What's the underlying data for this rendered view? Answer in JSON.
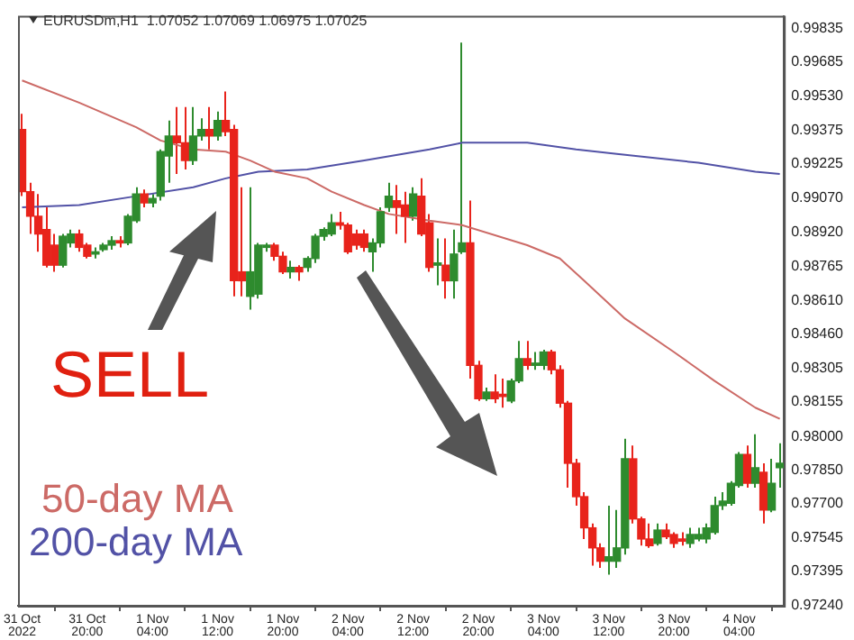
{
  "chart_data": {
    "type": "candlestick",
    "title": "EURUSDm,H1  1.07052 1.07069 1.06975 1.07025",
    "x": [
      "2022-10-31T12:00",
      "2022-10-31T13:00",
      "2022-10-31T14:00",
      "2022-10-31T15:00",
      "2022-10-31T16:00",
      "2022-10-31T17:00",
      "2022-10-31T18:00",
      "2022-10-31T19:00",
      "2022-10-31T20:00",
      "2022-10-31T21:00",
      "2022-10-31T22:00",
      "2022-10-31T23:00",
      "2022-11-01T00:00",
      "2022-11-01T01:00",
      "2022-11-01T02:00",
      "2022-11-01T03:00",
      "2022-11-01T04:00",
      "2022-11-01T05:00",
      "2022-11-01T06:00",
      "2022-11-01T07:00",
      "2022-11-01T08:00",
      "2022-11-01T09:00",
      "2022-11-01T10:00",
      "2022-11-01T11:00",
      "2022-11-01T12:00",
      "2022-11-01T13:00",
      "2022-11-01T14:00",
      "2022-11-01T15:00",
      "2022-11-01T16:00",
      "2022-11-01T17:00",
      "2022-11-01T18:00",
      "2022-11-01T19:00",
      "2022-11-01T20:00",
      "2022-11-01T21:00",
      "2022-11-01T22:00",
      "2022-11-01T23:00",
      "2022-11-02T00:00",
      "2022-11-02T01:00",
      "2022-11-02T02:00",
      "2022-11-02T03:00",
      "2022-11-02T04:00",
      "2022-11-02T05:00",
      "2022-11-02T06:00",
      "2022-11-02T07:00",
      "2022-11-02T08:00",
      "2022-11-02T09:00",
      "2022-11-02T10:00",
      "2022-11-02T11:00",
      "2022-11-02T12:00",
      "2022-11-02T13:00",
      "2022-11-02T14:00",
      "2022-11-02T15:00",
      "2022-11-02T16:00",
      "2022-11-02T17:00",
      "2022-11-02T18:00",
      "2022-11-02T19:00",
      "2022-11-02T20:00",
      "2022-11-02T21:00",
      "2022-11-02T22:00",
      "2022-11-02T23:00",
      "2022-11-03T00:00",
      "2022-11-03T01:00",
      "2022-11-03T02:00",
      "2022-11-03T03:00",
      "2022-11-03T04:00",
      "2022-11-03T05:00",
      "2022-11-03T06:00",
      "2022-11-03T07:00",
      "2022-11-03T08:00",
      "2022-11-03T09:00",
      "2022-11-03T10:00",
      "2022-11-03T11:00",
      "2022-11-03T12:00",
      "2022-11-03T13:00",
      "2022-11-03T14:00",
      "2022-11-03T15:00",
      "2022-11-03T16:00",
      "2022-11-03T17:00",
      "2022-11-03T18:00",
      "2022-11-03T19:00",
      "2022-11-03T20:00",
      "2022-11-03T21:00",
      "2022-11-03T22:00",
      "2022-11-03T23:00",
      "2022-11-04T00:00",
      "2022-11-04T01:00",
      "2022-11-04T02:00",
      "2022-11-04T03:00",
      "2022-11-04T04:00",
      "2022-11-04T05:00",
      "2022-11-04T06:00",
      "2022-11-04T07:00",
      "2022-11-04T08:00",
      "2022-11-04T09:00"
    ],
    "ohlc": [
      [
        0.9938,
        0.9945,
        0.9908,
        0.991
      ],
      [
        0.991,
        0.9914,
        0.9891,
        0.9899
      ],
      [
        0.9899,
        0.9909,
        0.9883,
        0.9891
      ],
      [
        0.9893,
        0.9903,
        0.9876,
        0.9877
      ],
      [
        0.9886,
        0.9891,
        0.9874,
        0.9877
      ],
      [
        0.9877,
        0.9891,
        0.9876,
        0.989
      ],
      [
        0.9887,
        0.9893,
        0.9885,
        0.9891
      ],
      [
        0.9891,
        0.9893,
        0.9883,
        0.9885
      ],
      [
        0.9886,
        0.9887,
        0.988,
        0.9881
      ],
      [
        0.9882,
        0.9885,
        0.988,
        0.9883
      ],
      [
        0.9884,
        0.9887,
        0.9883,
        0.9886
      ],
      [
        0.9886,
        0.989,
        0.9884,
        0.9888
      ],
      [
        0.9888,
        0.989,
        0.9885,
        0.9887
      ],
      [
        0.9887,
        0.99,
        0.9886,
        0.9899
      ],
      [
        0.9897,
        0.9912,
        0.9896,
        0.9909
      ],
      [
        0.9909,
        0.9911,
        0.9903,
        0.9905
      ],
      [
        0.9905,
        0.9909,
        0.9903,
        0.9907
      ],
      [
        0.9908,
        0.9929,
        0.9906,
        0.9928
      ],
      [
        0.9926,
        0.9942,
        0.9914,
        0.9935
      ],
      [
        0.9935,
        0.9948,
        0.9918,
        0.9932
      ],
      [
        0.9932,
        0.9948,
        0.992,
        0.9924
      ],
      [
        0.9924,
        0.9948,
        0.9922,
        0.9935
      ],
      [
        0.9935,
        0.9943,
        0.9933,
        0.9938
      ],
      [
        0.9938,
        0.9948,
        0.9929,
        0.9935
      ],
      [
        0.9935,
        0.9946,
        0.9933,
        0.9942
      ],
      [
        0.9942,
        0.9955,
        0.9935,
        0.9937
      ],
      [
        0.9938,
        0.994,
        0.9863,
        0.987
      ],
      [
        0.9874,
        0.9912,
        0.9863,
        0.987
      ],
      [
        0.9863,
        0.9912,
        0.9857,
        0.9874
      ],
      [
        0.9864,
        0.9887,
        0.9862,
        0.9886
      ],
      [
        0.9885,
        0.9887,
        0.9883,
        0.9886
      ],
      [
        0.9886,
        0.9887,
        0.9879,
        0.9881
      ],
      [
        0.9881,
        0.9883,
        0.9873,
        0.9874
      ],
      [
        0.9874,
        0.9879,
        0.9871,
        0.9876
      ],
      [
        0.9876,
        0.9877,
        0.987,
        0.9874
      ],
      [
        0.9876,
        0.9881,
        0.9874,
        0.988
      ],
      [
        0.988,
        0.9891,
        0.9878,
        0.989
      ],
      [
        0.989,
        0.9894,
        0.9888,
        0.9893
      ],
      [
        0.9891,
        0.99,
        0.989,
        0.9896
      ],
      [
        0.9896,
        0.9901,
        0.9893,
        0.9895
      ],
      [
        0.9895,
        0.9896,
        0.9882,
        0.9883
      ],
      [
        0.9891,
        0.9893,
        0.9884,
        0.9886
      ],
      [
        0.9891,
        0.9893,
        0.9883,
        0.9885
      ],
      [
        0.9883,
        0.9889,
        0.9874,
        0.9887
      ],
      [
        0.9887,
        0.9903,
        0.9885,
        0.9901
      ],
      [
        0.9903,
        0.9914,
        0.9901,
        0.9908
      ],
      [
        0.9906,
        0.9913,
        0.9891,
        0.9903
      ],
      [
        0.9904,
        0.991,
        0.9887,
        0.9899
      ],
      [
        0.9899,
        0.9912,
        0.9897,
        0.9909
      ],
      [
        0.9908,
        0.9916,
        0.989,
        0.9891
      ],
      [
        0.9896,
        0.99,
        0.9874,
        0.9876
      ],
      [
        0.9877,
        0.9889,
        0.9868,
        0.9878
      ],
      [
        0.9877,
        0.9889,
        0.9862,
        0.987
      ],
      [
        0.987,
        0.9893,
        0.9862,
        0.9882
      ],
      [
        0.9883,
        0.9977,
        0.9882,
        0.9887
      ],
      [
        0.9887,
        0.9906,
        0.9826,
        0.9832
      ],
      [
        0.9832,
        0.9834,
        0.9816,
        0.9817
      ],
      [
        0.9817,
        0.9822,
        0.9816,
        0.982
      ],
      [
        0.982,
        0.9828,
        0.9815,
        0.9817
      ],
      [
        0.9819,
        0.9826,
        0.9813,
        0.9818
      ],
      [
        0.9816,
        0.9826,
        0.9815,
        0.9825
      ],
      [
        0.9825,
        0.9843,
        0.9824,
        0.9835
      ],
      [
        0.9835,
        0.9843,
        0.983,
        0.9832
      ],
      [
        0.9832,
        0.9838,
        0.983,
        0.9833
      ],
      [
        0.9832,
        0.9839,
        0.983,
        0.9838
      ],
      [
        0.9838,
        0.9839,
        0.9828,
        0.983
      ],
      [
        0.983,
        0.9832,
        0.9813,
        0.9815
      ],
      [
        0.9815,
        0.9816,
        0.9777,
        0.9788
      ],
      [
        0.9788,
        0.979,
        0.9769,
        0.9773
      ],
      [
        0.9773,
        0.9775,
        0.9754,
        0.9759
      ],
      [
        0.9759,
        0.9761,
        0.9742,
        0.975
      ],
      [
        0.975,
        0.9752,
        0.9741,
        0.9744
      ],
      [
        0.9744,
        0.9769,
        0.9738,
        0.9746
      ],
      [
        0.9744,
        0.9767,
        0.9741,
        0.975
      ],
      [
        0.975,
        0.9799,
        0.9747,
        0.979
      ],
      [
        0.979,
        0.9796,
        0.9761,
        0.9763
      ],
      [
        0.9763,
        0.9764,
        0.9751,
        0.9754
      ],
      [
        0.9754,
        0.9761,
        0.975,
        0.9751
      ],
      [
        0.9752,
        0.9761,
        0.9751,
        0.9758
      ],
      [
        0.9758,
        0.9761,
        0.9754,
        0.9755
      ],
      [
        0.9756,
        0.9757,
        0.975,
        0.9752
      ],
      [
        0.9754,
        0.9757,
        0.9751,
        0.9753
      ],
      [
        0.9752,
        0.9759,
        0.975,
        0.9756
      ],
      [
        0.9754,
        0.9759,
        0.9753,
        0.9756
      ],
      [
        0.9754,
        0.9761,
        0.9752,
        0.9759
      ],
      [
        0.9757,
        0.9773,
        0.9756,
        0.9769
      ],
      [
        0.9769,
        0.9775,
        0.9767,
        0.9771
      ],
      [
        0.977,
        0.978,
        0.9769,
        0.9779
      ],
      [
        0.9778,
        0.9793,
        0.9777,
        0.9792
      ],
      [
        0.9792,
        0.9796,
        0.9777,
        0.9779
      ],
      [
        0.9779,
        0.9801,
        0.9777,
        0.9786
      ],
      [
        0.9784,
        0.9788,
        0.9761,
        0.9767
      ],
      [
        0.9767,
        0.979,
        0.9766,
        0.9779
      ],
      [
        0.9786,
        0.9797,
        0.9777,
        0.9788
      ]
    ],
    "series": [
      {
        "name": "50-day MA",
        "type": "line",
        "color": "#cc6a66",
        "x": [
          "2022-10-31T12:00",
          "2022-10-31T19:00",
          "2022-11-01T02:00",
          "2022-11-01T05:00",
          "2022-11-01T09:00",
          "2022-11-01T13:00",
          "2022-11-01T16:00",
          "2022-11-01T19:00",
          "2022-11-01T23:00",
          "2022-11-02T02:00",
          "2022-11-02T06:00",
          "2022-11-02T09:00",
          "2022-11-02T14:00",
          "2022-11-02T18:00",
          "2022-11-03T02:00",
          "2022-11-03T06:00",
          "2022-11-03T09:00",
          "2022-11-03T14:00",
          "2022-11-03T20:00",
          "2022-11-04T01:00",
          "2022-11-04T06:00",
          "2022-11-04T09:00"
        ],
        "values": [
          0.996,
          0.995,
          0.9939,
          0.9933,
          0.9929,
          0.9928,
          0.9924,
          0.9919,
          0.9916,
          0.991,
          0.9904,
          0.99,
          0.9897,
          0.9895,
          0.9886,
          0.988,
          0.987,
          0.9853,
          0.9838,
          0.9825,
          0.9813,
          0.9808
        ]
      },
      {
        "name": "200-day MA",
        "type": "line",
        "color": "#5252a6",
        "x": [
          "2022-10-31T12:00",
          "2022-10-31T19:00",
          "2022-11-01T02:00",
          "2022-11-01T09:00",
          "2022-11-01T13:00",
          "2022-11-01T17:00",
          "2022-11-01T23:00",
          "2022-11-02T06:00",
          "2022-11-02T14:00",
          "2022-11-02T18:00",
          "2022-11-03T02:00",
          "2022-11-03T08:00",
          "2022-11-03T13:00",
          "2022-11-03T23:00",
          "2022-11-04T06:00",
          "2022-11-04T09:00"
        ],
        "values": [
          0.9903,
          0.9904,
          0.9908,
          0.9912,
          0.9916,
          0.9919,
          0.992,
          0.9924,
          0.9929,
          0.9932,
          0.9932,
          0.9929,
          0.9927,
          0.9923,
          0.9919,
          0.9918
        ]
      }
    ],
    "xlim": [
      "2022-10-31T11:30",
      "2022-11-04T09:30"
    ],
    "xticks": [
      {
        "value": "2022-10-31T12:00",
        "label": "31 Oct 2022"
      },
      {
        "value": "2022-10-31T20:00",
        "label": "31 Oct 20:00"
      },
      {
        "value": "2022-11-01T04:00",
        "label": "1 Nov 04:00"
      },
      {
        "value": "2022-11-01T12:00",
        "label": "1 Nov 12:00"
      },
      {
        "value": "2022-11-01T20:00",
        "label": "1 Nov 20:00"
      },
      {
        "value": "2022-11-02T04:00",
        "label": "2 Nov 04:00"
      },
      {
        "value": "2022-11-02T12:00",
        "label": "2 Nov 12:00"
      },
      {
        "value": "2022-11-02T20:00",
        "label": "2 Nov 20:00"
      },
      {
        "value": "2022-11-03T04:00",
        "label": "3 Nov 04:00"
      },
      {
        "value": "2022-11-03T12:00",
        "label": "3 Nov 12:00"
      },
      {
        "value": "2022-11-03T20:00",
        "label": "3 Nov 20:00"
      },
      {
        "value": "2022-11-04T04:00",
        "label": "4 Nov 04:00"
      }
    ],
    "ylim": [
      0.9724,
      0.9989
    ],
    "yticks": [
      0.99835,
      0.99685,
      {
        "value": 0.9953,
        "label": "0.99530"
      },
      0.99375,
      0.99225,
      {
        "value": 0.9907,
        "label": "0.99070"
      },
      {
        "value": 0.9892,
        "label": "0.98920"
      },
      0.98765,
      {
        "value": 0.9861,
        "label": "0.98610"
      },
      {
        "value": 0.9846,
        "label": "0.98460"
      },
      0.98305,
      0.98155,
      {
        "value": 0.98,
        "label": "0.98000"
      },
      {
        "value": 0.9785,
        "label": "0.97850"
      },
      {
        "value": 0.977,
        "label": "0.97700"
      },
      0.97545,
      0.97395,
      {
        "value": 0.9724,
        "label": "0.97240"
      }
    ],
    "legend": "bottom left",
    "annotations": [
      "SELL"
    ]
  }
}
